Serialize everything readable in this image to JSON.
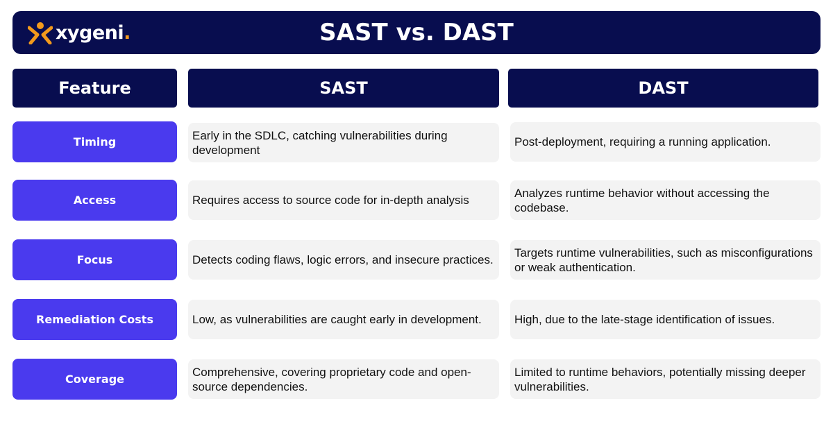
{
  "brand": {
    "name": "xygeni",
    "dot": ".",
    "accent": "#f39a1c",
    "navy": "#080d4f",
    "purple": "#4a3aee"
  },
  "title": "SAST vs. DAST",
  "headers": {
    "feature": "Feature",
    "sast": "SAST",
    "dast": "DAST"
  },
  "rows": [
    {
      "feature": "Timing",
      "sast": "Early in the SDLC, catching vulnerabilities during development",
      "dast": "Post-deployment, requiring a running application."
    },
    {
      "feature": "Access",
      "sast": "Requires access to source code for in-depth analysis",
      "dast": "Analyzes runtime behavior without accessing the codebase."
    },
    {
      "feature": "Focus",
      "sast": "Detects coding flaws, logic errors, and insecure practices.",
      "dast": "Targets runtime vulnerabilities, such as misconfigurations or weak authentication."
    },
    {
      "feature": "Remediation Costs",
      "sast": "Low, as vulnerabilities are caught early in development.",
      "dast": "High, due to the late-stage identification of issues."
    },
    {
      "feature": "Coverage",
      "sast": "Comprehensive, covering proprietary code and open-source dependencies.",
      "dast": "Limited to runtime behaviors, potentially missing deeper vulnerabilities."
    }
  ]
}
